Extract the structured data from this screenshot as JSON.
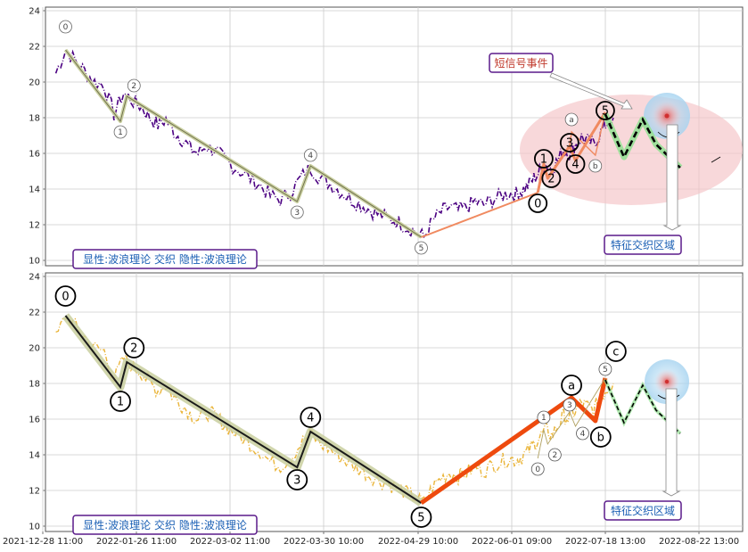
{
  "colors": {
    "price_top": "#4b0082",
    "price_bottom": "#e6a817",
    "wave_line": "#333333",
    "wave_halo": "#c9cf9f",
    "ab_line": "#ee4a0e",
    "ab_line_top": "#f08a60",
    "future_line": "#000000",
    "future_halo": "#90e090",
    "ellipse": "#f4c3c6",
    "halo_blue": "#a8d4f0",
    "box_border": "#5a1a8a",
    "box_text": "#1a5fb4",
    "event_text": "#c0392b"
  },
  "chart_data": [
    {
      "type": "line",
      "panel": "top",
      "ylim": [
        9.7,
        24.2
      ],
      "yticks": [
        "10",
        "12",
        "14",
        "16",
        "18",
        "20",
        "22",
        "24"
      ],
      "xticks": [
        "2021-12-28 11:00",
        "2022-01-26 11:00",
        "2022-03-02 11:00",
        "2022-03-30 10:00",
        "2022-04-29 10:00",
        "2022-06-01 09:00",
        "2022-07-18 13:00",
        "2022-08-22 13:00"
      ],
      "grid": true,
      "series": [
        {
          "style": "dash-dot price",
          "x": [
            "2022-01-01",
            "2022-01-04",
            "2022-01-07",
            "2022-01-10",
            "2022-01-13",
            "2022-01-16",
            "2022-01-19",
            "2022-01-22",
            "2022-01-25",
            "2022-01-28",
            "2022-01-31",
            "2022-02-03",
            "2022-02-06",
            "2022-02-09",
            "2022-02-12",
            "2022-02-15",
            "2022-02-18",
            "2022-02-21",
            "2022-02-24",
            "2022-02-27",
            "2022-03-02",
            "2022-03-05",
            "2022-03-08",
            "2022-03-11",
            "2022-03-14",
            "2022-03-17",
            "2022-03-20",
            "2022-03-23",
            "2022-03-26",
            "2022-03-29",
            "2022-04-01",
            "2022-04-04",
            "2022-04-07",
            "2022-04-10",
            "2022-04-13",
            "2022-04-16",
            "2022-04-19",
            "2022-04-22",
            "2022-04-25",
            "2022-04-28",
            "2022-05-01",
            "2022-05-04",
            "2022-05-07",
            "2022-05-10",
            "2022-05-13",
            "2022-05-16",
            "2022-05-19",
            "2022-05-22",
            "2022-05-25",
            "2022-05-28",
            "2022-05-31",
            "2022-06-03",
            "2022-06-06",
            "2022-06-09",
            "2022-06-12",
            "2022-06-15",
            "2022-06-18",
            "2022-06-21",
            "2022-06-24",
            "2022-06-27",
            "2022-06-30",
            "2022-07-03",
            "2022-07-06",
            "2022-07-09",
            "2022-07-12",
            "2022-07-15",
            "2022-07-18",
            "2022-07-21"
          ],
          "y": [
            20.5,
            21.8,
            21.2,
            20.6,
            20.0,
            19.8,
            18.2,
            19.4,
            18.9,
            18.6,
            18.0,
            17.6,
            17.9,
            17.2,
            16.8,
            16.3,
            16.0,
            16.4,
            16.2,
            15.8,
            15.4,
            15.0,
            14.6,
            14.2,
            13.6,
            13.4,
            13.8,
            14.6,
            15.2,
            14.6,
            14.3,
            13.9,
            13.5,
            13.2,
            12.9,
            12.6,
            12.4,
            12.2,
            11.9,
            11.6,
            11.3,
            12.2,
            12.7,
            13.0,
            12.8,
            13.0,
            13.3,
            13.1,
            13.4,
            13.6,
            13.8,
            13.7,
            13.9,
            14.2,
            14.6,
            15.0,
            15.4,
            15.1,
            15.6,
            16.2,
            16.0,
            16.5,
            16.9,
            16.7,
            16.5,
            17.0,
            17.6,
            18.0
          ]
        }
      ],
      "waves": {
        "labels": [
          "0",
          "1",
          "2",
          "3",
          "4",
          "5"
        ],
        "x": [
          "2022-01-04",
          "2022-01-21",
          "2022-01-23",
          "2022-03-22",
          "2022-03-26",
          "2022-04-30"
        ],
        "y": [
          21.8,
          17.8,
          19.2,
          13.3,
          15.3,
          11.3
        ]
      },
      "waves_new": {
        "labels": [
          "0",
          "1",
          "2",
          "3",
          "4",
          "5"
        ],
        "x": [
          "2022-06-14",
          "2022-06-17",
          "2022-06-19",
          "2022-06-30",
          "2022-07-03",
          "2022-07-18"
        ],
        "y": [
          13.8,
          15.4,
          14.6,
          16.4,
          15.6,
          18.3
        ]
      },
      "waves_abc": {
        "labels": [
          "a",
          "b"
        ],
        "x": [
          "2022-07-01",
          "2022-07-13"
        ],
        "y": [
          17.2,
          15.9
        ]
      },
      "projection": {
        "x": [
          "2022-07-18",
          "2022-07-25",
          "2022-08-01",
          "2022-08-06",
          "2022-08-15"
        ],
        "y": [
          18.2,
          15.8,
          17.9,
          16.5,
          15.2
        ]
      },
      "annotations": [
        "短信号事件",
        "特征交织区域",
        "显性:波浪理论 交织 隐性:波浪理论"
      ]
    },
    {
      "type": "line",
      "panel": "bottom",
      "ylim": [
        9.7,
        24.2
      ],
      "yticks": [
        "10",
        "12",
        "14",
        "16",
        "18",
        "20",
        "22",
        "24"
      ],
      "xticks": [
        "2021-12-28 11:00",
        "2022-01-26 11:00",
        "2022-03-02 11:00",
        "2022-03-30 10:00",
        "2022-04-29 10:00",
        "2022-06-01 09:00",
        "2022-07-18 13:00",
        "2022-08-22 13:00"
      ],
      "grid": true,
      "series": [
        {
          "style": "dash-dot price",
          "x": [
            "2022-01-01",
            "2022-01-04",
            "2022-01-07",
            "2022-01-10",
            "2022-01-13",
            "2022-01-16",
            "2022-01-19",
            "2022-01-22",
            "2022-01-25",
            "2022-01-28",
            "2022-01-31",
            "2022-02-03",
            "2022-02-06",
            "2022-02-09",
            "2022-02-12",
            "2022-02-15",
            "2022-02-18",
            "2022-02-21",
            "2022-02-24",
            "2022-02-27",
            "2022-03-02",
            "2022-03-05",
            "2022-03-08",
            "2022-03-11",
            "2022-03-14",
            "2022-03-17",
            "2022-03-20",
            "2022-03-23",
            "2022-03-26",
            "2022-03-29",
            "2022-04-01",
            "2022-04-04",
            "2022-04-07",
            "2022-04-10",
            "2022-04-13",
            "2022-04-16",
            "2022-04-19",
            "2022-04-22",
            "2022-04-25",
            "2022-04-28",
            "2022-05-01",
            "2022-05-04",
            "2022-05-07",
            "2022-05-10",
            "2022-05-13",
            "2022-05-16",
            "2022-05-19",
            "2022-05-22",
            "2022-05-25",
            "2022-05-28",
            "2022-05-31",
            "2022-06-03",
            "2022-06-06",
            "2022-06-09",
            "2022-06-12",
            "2022-06-15",
            "2022-06-18",
            "2022-06-21",
            "2022-06-24",
            "2022-06-27",
            "2022-06-30",
            "2022-07-03",
            "2022-07-06",
            "2022-07-09",
            "2022-07-12",
            "2022-07-15",
            "2022-07-18",
            "2022-07-21"
          ],
          "y": [
            20.5,
            21.8,
            21.2,
            20.6,
            20.0,
            19.8,
            18.2,
            19.4,
            18.9,
            18.6,
            18.0,
            17.6,
            17.9,
            17.2,
            16.8,
            16.3,
            16.0,
            16.4,
            16.2,
            15.8,
            15.4,
            15.0,
            14.6,
            14.2,
            13.6,
            13.4,
            13.8,
            14.6,
            15.2,
            14.6,
            14.3,
            13.9,
            13.5,
            13.2,
            12.9,
            12.6,
            12.4,
            12.2,
            11.9,
            11.6,
            11.3,
            12.2,
            12.7,
            13.0,
            12.8,
            13.0,
            13.3,
            13.1,
            13.4,
            13.6,
            13.8,
            13.7,
            13.9,
            14.2,
            14.6,
            15.0,
            15.4,
            15.1,
            15.6,
            16.2,
            16.0,
            16.5,
            16.9,
            16.7,
            16.5,
            17.0,
            17.6,
            18.0
          ]
        }
      ],
      "waves": {
        "labels": [
          "0",
          "1",
          "2",
          "3",
          "4",
          "5"
        ],
        "x": [
          "2022-01-04",
          "2022-01-21",
          "2022-01-23",
          "2022-03-22",
          "2022-03-26",
          "2022-04-30"
        ],
        "y": [
          21.8,
          17.8,
          19.2,
          13.3,
          15.3,
          11.3
        ]
      },
      "waves_new": {
        "labels": [
          "0",
          "1",
          "2",
          "3",
          "4",
          "5"
        ],
        "x": [
          "2022-06-14",
          "2022-06-17",
          "2022-06-19",
          "2022-06-30",
          "2022-07-03",
          "2022-07-18"
        ],
        "y": [
          13.8,
          15.4,
          14.6,
          16.4,
          15.6,
          18.3
        ]
      },
      "waves_abc": {
        "labels": [
          "a",
          "b",
          "c"
        ],
        "x": [
          "2022-07-01",
          "2022-07-13",
          "2022-07-20"
        ],
        "y": [
          17.2,
          15.9,
          18.8
        ]
      },
      "projection": {
        "x": [
          "2022-07-18",
          "2022-07-25",
          "2022-08-01",
          "2022-08-06",
          "2022-08-15"
        ],
        "y": [
          18.2,
          15.8,
          17.9,
          16.5,
          15.2
        ]
      },
      "annotations": [
        "特征交织区域",
        "显性:波浪理论 交织 隐性:波浪理论"
      ]
    }
  ]
}
